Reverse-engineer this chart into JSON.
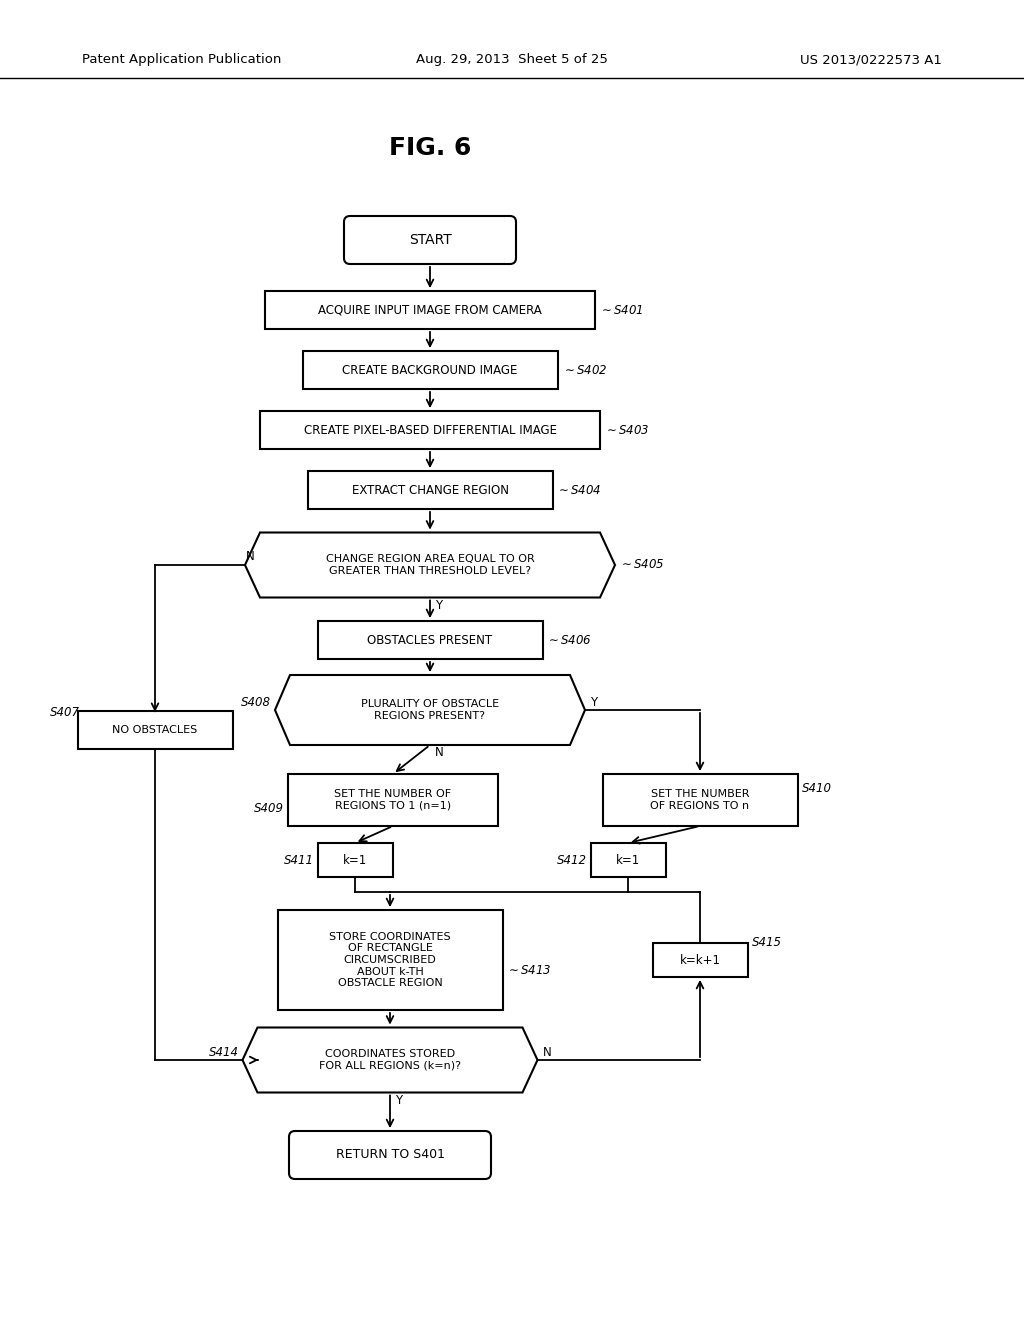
{
  "bg_color": "#ffffff",
  "header_left": "Patent Application Publication",
  "header_center": "Aug. 29, 2013  Sheet 5 of 25",
  "header_right": "US 2013/0222573 A1",
  "title": "FIG. 6"
}
